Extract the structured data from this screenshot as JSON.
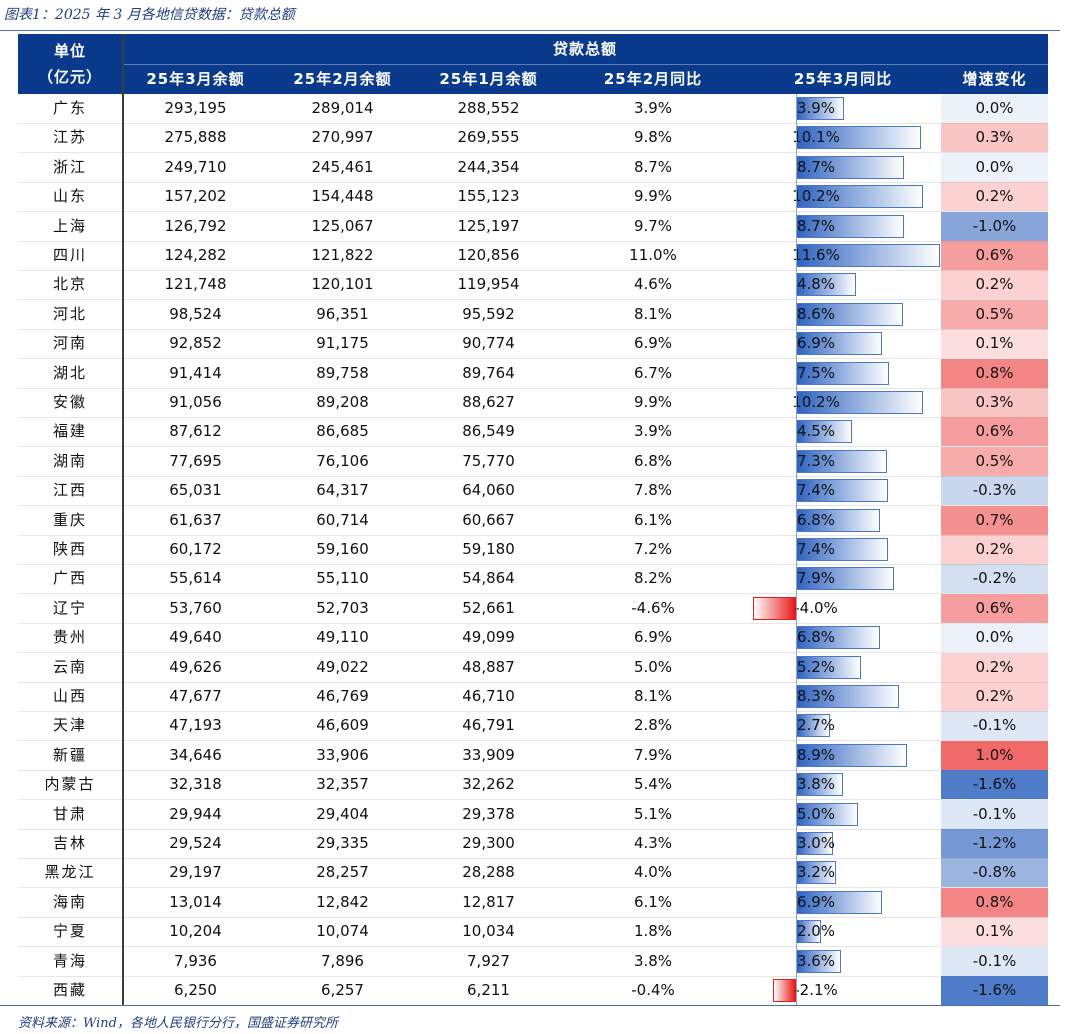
{
  "figure_title": "图表1：2025 年 3 月各地信贷数据：贷款总额",
  "source": "资料来源：Wind，各地人民银行分行，国盛证券研究所",
  "header": {
    "unit_label_line1": "单位",
    "unit_label_line2": "（亿元）",
    "group_label": "贷款总额",
    "columns": [
      "25年3月余额",
      "25年2月余额",
      "25年1月余额",
      "25年2月同比",
      "25年3月同比",
      "增速变化"
    ]
  },
  "colors": {
    "header_bg": "#0a3a8c",
    "bar_pos": "#2d63c0",
    "bar_neg": "#e81818",
    "chg_pos": "#f06060",
    "chg_neg": "#4a7ac8"
  },
  "chart_data": {
    "type": "table",
    "title": "图表1：2025 年 3 月各地信贷数据：贷款总额",
    "columns": [
      "单位（亿元）",
      "25年3月余额",
      "25年2月余额",
      "25年1月余额",
      "25年2月同比",
      "25年3月同比",
      "增速变化"
    ],
    "rows": [
      {
        "region": "广东",
        "mar": "293,195",
        "feb": "289,014",
        "jan": "288,552",
        "feb_yoy": "3.9%",
        "mar_yoy": "3.9%",
        "chg": "0.0%",
        "mar_yoy_v": 3.9,
        "chg_v": 0.0
      },
      {
        "region": "江苏",
        "mar": "275,888",
        "feb": "270,997",
        "jan": "269,555",
        "feb_yoy": "9.8%",
        "mar_yoy": "10.1%",
        "chg": "0.3%",
        "mar_yoy_v": 10.1,
        "chg_v": 0.3
      },
      {
        "region": "浙江",
        "mar": "249,710",
        "feb": "245,461",
        "jan": "244,354",
        "feb_yoy": "8.7%",
        "mar_yoy": "8.7%",
        "chg": "0.0%",
        "mar_yoy_v": 8.7,
        "chg_v": 0.0
      },
      {
        "region": "山东",
        "mar": "157,202",
        "feb": "154,448",
        "jan": "155,123",
        "feb_yoy": "9.9%",
        "mar_yoy": "10.2%",
        "chg": "0.2%",
        "mar_yoy_v": 10.2,
        "chg_v": 0.2
      },
      {
        "region": "上海",
        "mar": "126,792",
        "feb": "125,067",
        "jan": "125,197",
        "feb_yoy": "9.7%",
        "mar_yoy": "8.7%",
        "chg": "-1.0%",
        "mar_yoy_v": 8.7,
        "chg_v": -1.0
      },
      {
        "region": "四川",
        "mar": "124,282",
        "feb": "121,822",
        "jan": "120,856",
        "feb_yoy": "11.0%",
        "mar_yoy": "11.6%",
        "chg": "0.6%",
        "mar_yoy_v": 11.6,
        "chg_v": 0.6
      },
      {
        "region": "北京",
        "mar": "121,748",
        "feb": "120,101",
        "jan": "119,954",
        "feb_yoy": "4.6%",
        "mar_yoy": "4.8%",
        "chg": "0.2%",
        "mar_yoy_v": 4.8,
        "chg_v": 0.2
      },
      {
        "region": "河北",
        "mar": "98,524",
        "feb": "96,351",
        "jan": "95,592",
        "feb_yoy": "8.1%",
        "mar_yoy": "8.6%",
        "chg": "0.5%",
        "mar_yoy_v": 8.6,
        "chg_v": 0.5
      },
      {
        "region": "河南",
        "mar": "92,852",
        "feb": "91,175",
        "jan": "90,774",
        "feb_yoy": "6.9%",
        "mar_yoy": "6.9%",
        "chg": "0.1%",
        "mar_yoy_v": 6.9,
        "chg_v": 0.1
      },
      {
        "region": "湖北",
        "mar": "91,414",
        "feb": "89,758",
        "jan": "89,764",
        "feb_yoy": "6.7%",
        "mar_yoy": "7.5%",
        "chg": "0.8%",
        "mar_yoy_v": 7.5,
        "chg_v": 0.8
      },
      {
        "region": "安徽",
        "mar": "91,056",
        "feb": "89,208",
        "jan": "88,627",
        "feb_yoy": "9.9%",
        "mar_yoy": "10.2%",
        "chg": "0.3%",
        "mar_yoy_v": 10.2,
        "chg_v": 0.3
      },
      {
        "region": "福建",
        "mar": "87,612",
        "feb": "86,685",
        "jan": "86,549",
        "feb_yoy": "3.9%",
        "mar_yoy": "4.5%",
        "chg": "0.6%",
        "mar_yoy_v": 4.5,
        "chg_v": 0.6
      },
      {
        "region": "湖南",
        "mar": "77,695",
        "feb": "76,106",
        "jan": "75,770",
        "feb_yoy": "6.8%",
        "mar_yoy": "7.3%",
        "chg": "0.5%",
        "mar_yoy_v": 7.3,
        "chg_v": 0.5
      },
      {
        "region": "江西",
        "mar": "65,031",
        "feb": "64,317",
        "jan": "64,060",
        "feb_yoy": "7.8%",
        "mar_yoy": "7.4%",
        "chg": "-0.3%",
        "mar_yoy_v": 7.4,
        "chg_v": -0.3
      },
      {
        "region": "重庆",
        "mar": "61,637",
        "feb": "60,714",
        "jan": "60,667",
        "feb_yoy": "6.1%",
        "mar_yoy": "6.8%",
        "chg": "0.7%",
        "mar_yoy_v": 6.8,
        "chg_v": 0.7
      },
      {
        "region": "陕西",
        "mar": "60,172",
        "feb": "59,160",
        "jan": "59,180",
        "feb_yoy": "7.2%",
        "mar_yoy": "7.4%",
        "chg": "0.2%",
        "mar_yoy_v": 7.4,
        "chg_v": 0.2
      },
      {
        "region": "广西",
        "mar": "55,614",
        "feb": "55,110",
        "jan": "54,864",
        "feb_yoy": "8.2%",
        "mar_yoy": "7.9%",
        "chg": "-0.2%",
        "mar_yoy_v": 7.9,
        "chg_v": -0.2
      },
      {
        "region": "辽宁",
        "mar": "53,760",
        "feb": "52,703",
        "jan": "52,661",
        "feb_yoy": "-4.6%",
        "mar_yoy": "-4.0%",
        "chg": "0.6%",
        "mar_yoy_v": -4.0,
        "chg_v": 0.6
      },
      {
        "region": "贵州",
        "mar": "49,640",
        "feb": "49,110",
        "jan": "49,099",
        "feb_yoy": "6.9%",
        "mar_yoy": "6.8%",
        "chg": "0.0%",
        "mar_yoy_v": 6.8,
        "chg_v": 0.0
      },
      {
        "region": "云南",
        "mar": "49,626",
        "feb": "49,022",
        "jan": "48,887",
        "feb_yoy": "5.0%",
        "mar_yoy": "5.2%",
        "chg": "0.2%",
        "mar_yoy_v": 5.2,
        "chg_v": 0.2
      },
      {
        "region": "山西",
        "mar": "47,677",
        "feb": "46,769",
        "jan": "46,710",
        "feb_yoy": "8.1%",
        "mar_yoy": "8.3%",
        "chg": "0.2%",
        "mar_yoy_v": 8.3,
        "chg_v": 0.2
      },
      {
        "region": "天津",
        "mar": "47,193",
        "feb": "46,609",
        "jan": "46,791",
        "feb_yoy": "2.8%",
        "mar_yoy": "2.7%",
        "chg": "-0.1%",
        "mar_yoy_v": 2.7,
        "chg_v": -0.1
      },
      {
        "region": "新疆",
        "mar": "34,646",
        "feb": "33,906",
        "jan": "33,909",
        "feb_yoy": "7.9%",
        "mar_yoy": "8.9%",
        "chg": "1.0%",
        "mar_yoy_v": 8.9,
        "chg_v": 1.0
      },
      {
        "region": "内蒙古",
        "mar": "32,318",
        "feb": "32,357",
        "jan": "32,262",
        "feb_yoy": "5.4%",
        "mar_yoy": "3.8%",
        "chg": "-1.6%",
        "mar_yoy_v": 3.8,
        "chg_v": -1.6
      },
      {
        "region": "甘肃",
        "mar": "29,944",
        "feb": "29,404",
        "jan": "29,378",
        "feb_yoy": "5.1%",
        "mar_yoy": "5.0%",
        "chg": "-0.1%",
        "mar_yoy_v": 5.0,
        "chg_v": -0.1
      },
      {
        "region": "吉林",
        "mar": "29,524",
        "feb": "29,335",
        "jan": "29,300",
        "feb_yoy": "4.3%",
        "mar_yoy": "3.0%",
        "chg": "-1.2%",
        "mar_yoy_v": 3.0,
        "chg_v": -1.2
      },
      {
        "region": "黑龙江",
        "mar": "29,197",
        "feb": "28,257",
        "jan": "28,288",
        "feb_yoy": "4.0%",
        "mar_yoy": "3.2%",
        "chg": "-0.8%",
        "mar_yoy_v": 3.2,
        "chg_v": -0.8
      },
      {
        "region": "海南",
        "mar": "13,014",
        "feb": "12,842",
        "jan": "12,817",
        "feb_yoy": "6.1%",
        "mar_yoy": "6.9%",
        "chg": "0.8%",
        "mar_yoy_v": 6.9,
        "chg_v": 0.8
      },
      {
        "region": "宁夏",
        "mar": "10,204",
        "feb": "10,074",
        "jan": "10,034",
        "feb_yoy": "1.8%",
        "mar_yoy": "2.0%",
        "chg": "0.1%",
        "mar_yoy_v": 2.0,
        "chg_v": 0.1
      },
      {
        "region": "青海",
        "mar": "7,936",
        "feb": "7,896",
        "jan": "7,927",
        "feb_yoy": "3.8%",
        "mar_yoy": "3.6%",
        "chg": "-0.1%",
        "mar_yoy_v": 3.6,
        "chg_v": -0.1
      },
      {
        "region": "西藏",
        "mar": "6,250",
        "feb": "6,257",
        "jan": "6,211",
        "feb_yoy": "-0.4%",
        "mar_yoy": "-2.1%",
        "chg": "-1.6%",
        "mar_yoy_v": -2.1,
        "chg_v": -1.6
      }
    ],
    "data_bar_range": [
      -4.6,
      11.6
    ],
    "color_scale_range": [
      -1.6,
      1.0
    ]
  }
}
